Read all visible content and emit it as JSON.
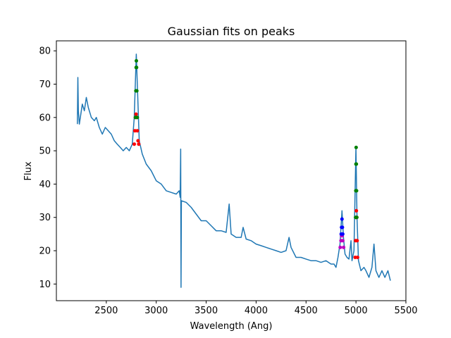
{
  "chart_data": {
    "type": "line",
    "title": "Gaussian fits on peaks",
    "xlabel": "Wavelength (Ang)",
    "ylabel": "Flux",
    "xlim": [
      2000,
      5500
    ],
    "ylim": [
      5,
      83
    ],
    "xticks": [
      2500,
      3000,
      3500,
      4000,
      4500,
      5000,
      5500
    ],
    "yticks": [
      10,
      20,
      30,
      40,
      50,
      60,
      70,
      80
    ],
    "grid": false,
    "colors": {
      "spectrum": "#1f77b4",
      "red": "#ff0000",
      "green": "#008000",
      "blue": "#0000ff",
      "magenta": "#bf00bf"
    },
    "spectrum": [
      [
        2210,
        58
      ],
      [
        2215,
        72
      ],
      [
        2220,
        62
      ],
      [
        2230,
        58
      ],
      [
        2245,
        61
      ],
      [
        2260,
        64
      ],
      [
        2280,
        62
      ],
      [
        2300,
        66
      ],
      [
        2320,
        63
      ],
      [
        2350,
        60
      ],
      [
        2380,
        59
      ],
      [
        2400,
        60
      ],
      [
        2430,
        57
      ],
      [
        2460,
        55
      ],
      [
        2490,
        57
      ],
      [
        2520,
        56
      ],
      [
        2550,
        55
      ],
      [
        2580,
        53
      ],
      [
        2610,
        52
      ],
      [
        2640,
        51
      ],
      [
        2670,
        50
      ],
      [
        2700,
        51
      ],
      [
        2730,
        50
      ],
      [
        2760,
        52
      ],
      [
        2780,
        60
      ],
      [
        2800,
        79
      ],
      [
        2815,
        66
      ],
      [
        2830,
        53
      ],
      [
        2860,
        49
      ],
      [
        2900,
        46
      ],
      [
        2950,
        44
      ],
      [
        3000,
        41
      ],
      [
        3050,
        40
      ],
      [
        3100,
        38
      ],
      [
        3150,
        37.5
      ],
      [
        3200,
        37
      ],
      [
        3230,
        38
      ],
      [
        3240,
        36
      ],
      [
        3245,
        50.5
      ],
      [
        3248,
        9
      ],
      [
        3252,
        35
      ],
      [
        3300,
        34.5
      ],
      [
        3350,
        33
      ],
      [
        3400,
        31
      ],
      [
        3450,
        29
      ],
      [
        3500,
        29
      ],
      [
        3550,
        27.5
      ],
      [
        3600,
        26
      ],
      [
        3650,
        26
      ],
      [
        3700,
        25.5
      ],
      [
        3730,
        34
      ],
      [
        3750,
        25
      ],
      [
        3800,
        24
      ],
      [
        3850,
        24
      ],
      [
        3870,
        27
      ],
      [
        3900,
        23.5
      ],
      [
        3950,
        23
      ],
      [
        4000,
        22
      ],
      [
        4050,
        21.5
      ],
      [
        4100,
        21
      ],
      [
        4150,
        20.5
      ],
      [
        4200,
        20
      ],
      [
        4250,
        19.5
      ],
      [
        4300,
        20
      ],
      [
        4330,
        24
      ],
      [
        4350,
        21
      ],
      [
        4400,
        18
      ],
      [
        4450,
        18
      ],
      [
        4500,
        17.5
      ],
      [
        4550,
        17
      ],
      [
        4600,
        17
      ],
      [
        4650,
        16.5
      ],
      [
        4700,
        17
      ],
      [
        4750,
        16
      ],
      [
        4780,
        16
      ],
      [
        4800,
        15
      ],
      [
        4820,
        18
      ],
      [
        4840,
        22
      ],
      [
        4860,
        32
      ],
      [
        4875,
        24
      ],
      [
        4890,
        19
      ],
      [
        4910,
        18
      ],
      [
        4930,
        17.5
      ],
      [
        4950,
        23
      ],
      [
        4960,
        17
      ],
      [
        4980,
        20
      ],
      [
        5000,
        51
      ],
      [
        5010,
        30
      ],
      [
        5025,
        17
      ],
      [
        5050,
        14
      ],
      [
        5080,
        15
      ],
      [
        5100,
        14
      ],
      [
        5130,
        12
      ],
      [
        5160,
        15
      ],
      [
        5180,
        22
      ],
      [
        5200,
        14
      ],
      [
        5230,
        12
      ],
      [
        5260,
        14
      ],
      [
        5290,
        12
      ],
      [
        5320,
        14
      ],
      [
        5345,
        11
      ]
    ],
    "fits": [
      {
        "color": "red",
        "points": [
          [
            2780,
            52
          ],
          [
            2786,
            56
          ],
          [
            2792,
            60
          ],
          [
            2798,
            61
          ],
          [
            2804,
            60
          ],
          [
            2810,
            56
          ],
          [
            2818,
            53
          ],
          [
            2825,
            52
          ]
        ]
      },
      {
        "color": "green",
        "points": [
          [
            2792,
            60
          ],
          [
            2796,
            68
          ],
          [
            2799,
            75
          ],
          [
            2801,
            77
          ],
          [
            2803,
            75
          ],
          [
            2806,
            68
          ],
          [
            2810,
            60
          ]
        ]
      },
      {
        "color": "magenta",
        "points": [
          [
            4842,
            21
          ],
          [
            4850,
            23
          ],
          [
            4856,
            24.5
          ],
          [
            4862,
            24.5
          ],
          [
            4868,
            23
          ],
          [
            4876,
            21
          ]
        ]
      },
      {
        "color": "blue",
        "points": [
          [
            4852,
            25
          ],
          [
            4856,
            27
          ],
          [
            4860,
            29.5
          ],
          [
            4864,
            27
          ],
          [
            4868,
            25
          ]
        ]
      },
      {
        "color": "red",
        "points": [
          [
            4992,
            18
          ],
          [
            4996,
            23
          ],
          [
            5000,
            30
          ],
          [
            5004,
            32
          ],
          [
            5008,
            30
          ],
          [
            5012,
            23
          ],
          [
            5016,
            18
          ]
        ]
      },
      {
        "color": "green",
        "points": [
          [
            4996,
            30
          ],
          [
            4998,
            38
          ],
          [
            5000,
            46
          ],
          [
            5002,
            51
          ],
          [
            5004,
            46
          ],
          [
            5006,
            38
          ],
          [
            5008,
            30
          ]
        ]
      }
    ]
  }
}
